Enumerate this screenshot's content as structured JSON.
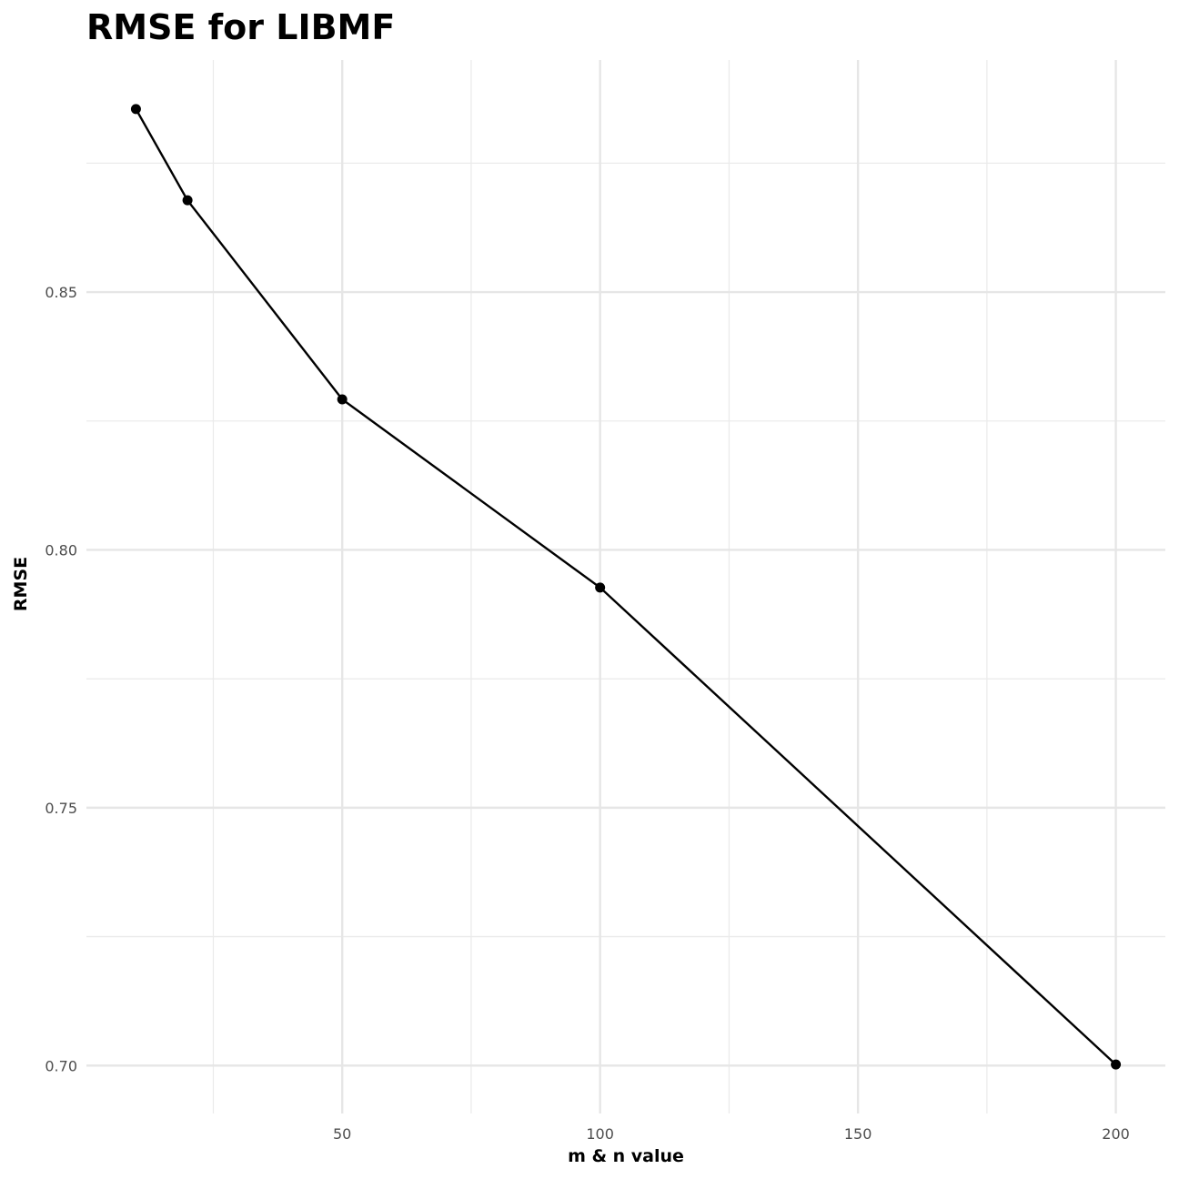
{
  "chart_data": {
    "type": "line",
    "title": "RMSE for LIBMF",
    "xlabel": "m & n value",
    "ylabel": "RMSE",
    "x": [
      10,
      20,
      50,
      100,
      200
    ],
    "series": [
      {
        "values": [
          0.8855,
          0.8678,
          0.8292,
          0.7927,
          0.7002
        ]
      }
    ],
    "xlim": [
      0.4,
      209.6
    ],
    "ylim": [
      0.6907,
      0.895
    ],
    "x_ticks": [
      50,
      100,
      150,
      200
    ],
    "x_tick_labels": [
      "50",
      "100",
      "150",
      "200"
    ],
    "x_minor_ticks": [
      25,
      75,
      125,
      175
    ],
    "y_ticks": [
      0.7,
      0.75,
      0.8,
      0.85
    ],
    "y_tick_labels": [
      "0.70",
      "0.75",
      "0.80",
      "0.85"
    ],
    "y_minor_ticks": [
      0.725,
      0.775,
      0.825,
      0.875
    ],
    "grid": true,
    "legend": "none",
    "colors": {
      "line": "#000000",
      "points": "#000000",
      "grid": "#e6e6e6"
    }
  }
}
